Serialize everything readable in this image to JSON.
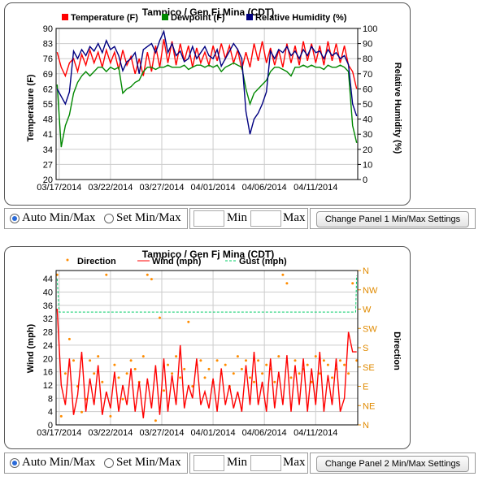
{
  "panel1": {
    "title": "Tampico / Gen Fj Mina (CDT)",
    "chart_data": {
      "type": "line",
      "title": "Tampico / Gen Fj Mina (CDT)",
      "xlabel": "",
      "ylabel": "Temperature (F)",
      "y2label": "Relative Humidity (%)",
      "x_ticks": [
        "03/17/2014",
        "03/22/2014",
        "03/27/2014",
        "04/01/2014",
        "04/06/2014",
        "04/11/2014"
      ],
      "y_ticks": [
        "20",
        "27",
        "34",
        "41",
        "48",
        "55",
        "62",
        "69",
        "76",
        "83",
        "90"
      ],
      "y2_ticks": [
        "0",
        "10",
        "20",
        "30",
        "40",
        "50",
        "60",
        "70",
        "80",
        "90",
        "100"
      ],
      "ylim": [
        20,
        90
      ],
      "y2lim": [
        0,
        100
      ],
      "x_days": [
        16.8,
        17.2,
        17.6,
        18.0,
        18.4,
        18.8,
        19.2,
        19.6,
        20.0,
        20.4,
        20.8,
        21.2,
        21.6,
        22.0,
        22.4,
        22.8,
        23.2,
        23.6,
        24.0,
        24.4,
        24.8,
        25.2,
        25.6,
        26.0,
        26.4,
        26.8,
        27.2,
        27.6,
        28.0,
        28.4,
        28.8,
        29.2,
        29.6,
        30.0,
        30.4,
        30.8,
        31.2,
        31.6,
        32.0,
        32.4,
        32.8,
        33.2,
        33.6,
        34.0,
        34.4,
        34.8,
        35.2,
        35.6,
        36.0,
        36.4,
        36.8,
        37.2,
        37.6,
        38.0,
        38.4,
        38.8,
        39.2,
        39.6,
        40.0,
        40.4,
        40.8,
        41.2,
        41.6,
        42.0,
        42.4,
        42.8,
        43.2,
        43.6,
        44.0,
        44.4,
        44.8,
        45.2,
        45.6,
        46.0
      ],
      "series": [
        {
          "name": "Temperature (F)",
          "color": "#ff0000",
          "axis": "left",
          "values": [
            79,
            72,
            68,
            74,
            76,
            70,
            78,
            73,
            80,
            74,
            79,
            72,
            80,
            74,
            79,
            71,
            80,
            73,
            77,
            69,
            76,
            68,
            79,
            70,
            82,
            72,
            85,
            74,
            84,
            73,
            83,
            75,
            82,
            72,
            81,
            74,
            79,
            73,
            82,
            75,
            83,
            76,
            82,
            74,
            80,
            71,
            79,
            72,
            83,
            75,
            84,
            74,
            81,
            73,
            80,
            72,
            83,
            74,
            82,
            73,
            84,
            75,
            83,
            74,
            82,
            73,
            84,
            75,
            83,
            74,
            82,
            73,
            70,
            62
          ]
        },
        {
          "name": "Dewpoint (F)",
          "color": "#008800",
          "axis": "left",
          "values": [
            64,
            35,
            45,
            50,
            60,
            65,
            68,
            70,
            68,
            70,
            72,
            72,
            70,
            72,
            71,
            72,
            60,
            62,
            63,
            65,
            66,
            70,
            72,
            72,
            71,
            72,
            72,
            73,
            72,
            72,
            72,
            73,
            71,
            72,
            73,
            73,
            72,
            73,
            72,
            73,
            70,
            72,
            73,
            74,
            73,
            72,
            62,
            55,
            60,
            62,
            64,
            66,
            70,
            72,
            72,
            71,
            70,
            68,
            72,
            72,
            73,
            72,
            73,
            72,
            72,
            71,
            73,
            72,
            72,
            73,
            72,
            70,
            45,
            37
          ]
        },
        {
          "name": "Relative Humidity (%)",
          "color": "#000080",
          "axis": "right",
          "values": [
            60,
            55,
            50,
            58,
            85,
            80,
            86,
            82,
            88,
            85,
            90,
            84,
            92,
            86,
            88,
            82,
            72,
            78,
            80,
            84,
            70,
            86,
            88,
            90,
            84,
            92,
            98,
            84,
            90,
            82,
            85,
            78,
            80,
            88,
            80,
            84,
            88,
            82,
            80,
            86,
            75,
            80,
            85,
            90,
            86,
            80,
            45,
            30,
            40,
            44,
            50,
            58,
            85,
            80,
            86,
            84,
            88,
            82,
            85,
            80,
            86,
            82,
            88,
            84,
            85,
            80,
            86,
            82,
            84,
            80,
            82,
            76,
            50,
            42
          ]
        }
      ],
      "legend": "top",
      "grid": true
    }
  },
  "panel2": {
    "title": "Tampico / Gen Fj Mina (CDT)",
    "chart_data": {
      "type": "line",
      "title": "Tampico / Gen Fj Mina (CDT)",
      "xlabel": "",
      "ylabel": "Wind (mph)",
      "y2label": "Direction",
      "x_ticks": [
        "03/17/2014",
        "03/22/2014",
        "03/27/2014",
        "04/01/2014",
        "04/06/2014",
        "04/11/2014"
      ],
      "y_ticks": [
        "0",
        "4",
        "8",
        "12",
        "16",
        "20",
        "24",
        "28",
        "32",
        "36",
        "40",
        "44"
      ],
      "y2_ticks": [
        "N",
        "NE",
        "E",
        "SE",
        "S",
        "SW",
        "W",
        "NW",
        "N"
      ],
      "ylim": [
        0,
        46.5
      ],
      "y2lim": [
        0,
        360
      ],
      "x_days": [
        16.8,
        17.2,
        17.6,
        18.0,
        18.4,
        18.8,
        19.2,
        19.6,
        20.0,
        20.4,
        20.8,
        21.2,
        21.6,
        22.0,
        22.4,
        22.8,
        23.2,
        23.6,
        24.0,
        24.4,
        24.8,
        25.2,
        25.6,
        26.0,
        26.4,
        26.8,
        27.2,
        27.6,
        28.0,
        28.4,
        28.8,
        29.2,
        29.6,
        30.0,
        30.4,
        30.8,
        31.2,
        31.6,
        32.0,
        32.4,
        32.8,
        33.2,
        33.6,
        34.0,
        34.4,
        34.8,
        35.2,
        35.6,
        36.0,
        36.4,
        36.8,
        37.2,
        37.6,
        38.0,
        38.4,
        38.8,
        39.2,
        39.6,
        40.0,
        40.4,
        40.8,
        41.2,
        41.6,
        42.0,
        42.4,
        42.8,
        43.2,
        43.6,
        44.0,
        44.4,
        44.8,
        45.2,
        45.6,
        46.0
      ],
      "series": [
        {
          "name": "Direction",
          "color": "#ff8c00",
          "axis": "right",
          "style": "dots",
          "values": [
            350,
            20,
            120,
            200,
            150,
            90,
            30,
            60,
            150,
            120,
            160,
            100,
            350,
            20,
            140,
            110,
            60,
            120,
            150,
            130,
            100,
            160,
            350,
            340,
            10,
            250,
            80,
            140,
            120,
            160,
            110,
            130,
            240,
            90,
            140,
            150,
            110,
            130,
            100,
            150,
            120,
            140,
            90,
            120,
            160,
            130,
            150,
            110,
            100,
            150,
            120,
            140,
            130,
            100,
            160,
            350,
            330,
            110,
            150,
            120,
            130,
            140,
            100,
            160,
            120,
            150,
            140,
            110,
            130,
            150,
            140,
            120,
            330,
            150
          ]
        },
        {
          "name": "Wind (mph)",
          "color": "#ff0000",
          "axis": "left",
          "values": [
            35,
            12,
            6,
            20,
            3,
            9,
            22,
            4,
            14,
            6,
            18,
            3,
            10,
            5,
            16,
            4,
            12,
            6,
            17,
            4,
            13,
            2,
            14,
            5,
            18,
            3,
            20,
            4,
            15,
            6,
            24,
            5,
            12,
            8,
            20,
            6,
            10,
            5,
            14,
            4,
            17,
            6,
            12,
            5,
            10,
            4,
            18,
            6,
            22,
            6,
            13,
            4,
            20,
            5,
            16,
            6,
            21,
            4,
            18,
            6,
            20,
            4,
            17,
            6,
            22,
            4,
            15,
            6,
            20,
            4,
            8,
            28,
            22,
            22
          ]
        },
        {
          "name": "Gust (mph)",
          "color": "#00cc66",
          "axis": "left",
          "style": "dashed",
          "points": [
            [
              16.8,
              44
            ],
            [
              17.0,
              34
            ],
            [
              45.9,
              34
            ],
            [
              46.0,
              45
            ]
          ]
        }
      ],
      "legend": "top",
      "grid": true
    }
  },
  "controls1": {
    "auto_label": "Auto Min/Max",
    "set_label": "Set Min/Max",
    "min_label": "Min",
    "max_label": "Max",
    "button_label": "Change Panel 1 Min/Max Settings",
    "auto_selected": true
  },
  "controls2": {
    "auto_label": "Auto Min/Max",
    "set_label": "Set Min/Max",
    "min_label": "Min",
    "max_label": "Max",
    "button_label": "Change Panel 2 Min/Max Settings",
    "auto_selected": true
  }
}
